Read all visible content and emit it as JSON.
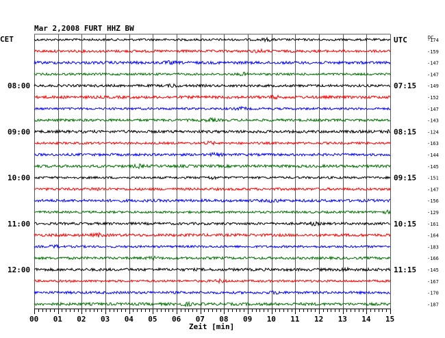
{
  "chart_data": {
    "type": "line",
    "title": "Mar 2,2008   FURT HHZ BW",
    "xlabel": "Zeit [min]",
    "left_label": "CET",
    "right_label": "UTC",
    "dc_label": "DC",
    "xlim": [
      0,
      15
    ],
    "x_ticks": [
      "00",
      "01",
      "02",
      "03",
      "04",
      "05",
      "06",
      "07",
      "08",
      "09",
      "10",
      "11",
      "12",
      "13",
      "14",
      "15"
    ],
    "trace_colors": [
      "#000000",
      "#ff0000",
      "#0000ff",
      "#007000"
    ],
    "left_time_labels": [
      {
        "row": 4,
        "text": "08:00"
      },
      {
        "row": 8,
        "text": "09:00"
      },
      {
        "row": 12,
        "text": "10:00"
      },
      {
        "row": 16,
        "text": "11:00"
      },
      {
        "row": 20,
        "text": "12:00"
      }
    ],
    "right_time_labels": [
      {
        "row": 0,
        "text": "UTC"
      },
      {
        "row": 4,
        "text": "07:15"
      },
      {
        "row": 8,
        "text": "08:15"
      },
      {
        "row": 12,
        "text": "09:15"
      },
      {
        "row": 16,
        "text": "10:15"
      },
      {
        "row": 20,
        "text": "11:15"
      }
    ],
    "dc_offsets": [
      -174,
      -159,
      -147,
      -147,
      -149,
      -152,
      -147,
      -143,
      -124,
      -163,
      -144,
      -145,
      -151,
      -147,
      -156,
      -129,
      -161,
      -164,
      -183,
      -166,
      -145,
      -167,
      -170,
      -187
    ],
    "series": [
      {
        "row": 0,
        "color": "#000000"
      },
      {
        "row": 1,
        "color": "#ff0000"
      },
      {
        "row": 2,
        "color": "#0000ff"
      },
      {
        "row": 3,
        "color": "#007000"
      },
      {
        "row": 4,
        "color": "#000000"
      },
      {
        "row": 5,
        "color": "#ff0000"
      },
      {
        "row": 6,
        "color": "#0000ff"
      },
      {
        "row": 7,
        "color": "#007000"
      },
      {
        "row": 8,
        "color": "#000000"
      },
      {
        "row": 9,
        "color": "#ff0000"
      },
      {
        "row": 10,
        "color": "#0000ff"
      },
      {
        "row": 11,
        "color": "#007000"
      },
      {
        "row": 12,
        "color": "#000000"
      },
      {
        "row": 13,
        "color": "#ff0000"
      },
      {
        "row": 14,
        "color": "#0000ff"
      },
      {
        "row": 15,
        "color": "#007000"
      },
      {
        "row": 16,
        "color": "#000000"
      },
      {
        "row": 17,
        "color": "#ff0000"
      },
      {
        "row": 18,
        "color": "#0000ff"
      },
      {
        "row": 19,
        "color": "#007000"
      },
      {
        "row": 20,
        "color": "#000000"
      },
      {
        "row": 21,
        "color": "#ff0000"
      },
      {
        "row": 22,
        "color": "#0000ff"
      },
      {
        "row": 23,
        "color": "#007000"
      }
    ],
    "grid": true
  }
}
